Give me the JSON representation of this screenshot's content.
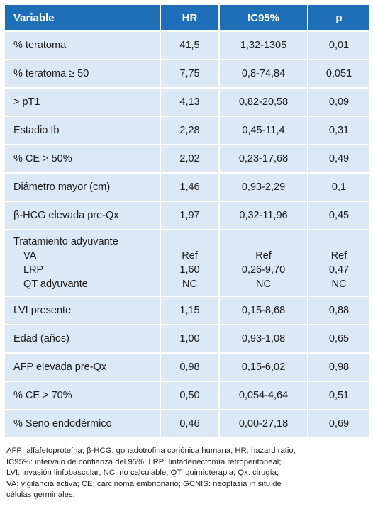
{
  "headers": [
    "Variable",
    "HR",
    "IC95%",
    "p"
  ],
  "rows_before": [
    {
      "variable": "% teratoma",
      "hr": "41,5",
      "ic": "1,32-1305",
      "p": "0,01"
    },
    {
      "variable": "% teratoma ≥ 50",
      "hr": "7,75",
      "ic": "0,8-74,84",
      "p": "0,051"
    },
    {
      "variable": "> pT1",
      "hr": "4,13",
      "ic": "0,82-20,58",
      "p": "0,09"
    },
    {
      "variable": "Estadio Ib",
      "hr": "2,28",
      "ic": "0,45-11,4",
      "p": "0,31"
    },
    {
      "variable": "% CE > 50%",
      "hr": "2,02",
      "ic": "0,23-17,68",
      "p": "0,49"
    },
    {
      "variable": "Diámetro mayor (cm)",
      "hr": "1,46",
      "ic": "0,93-2,29",
      "p": "0,1"
    },
    {
      "variable": "β-HCG elevada pre-Qx",
      "hr": "1,97",
      "ic": "0,32-11,96",
      "p": "0,45"
    }
  ],
  "treatment": {
    "title": "Tratamiento adyuvante",
    "items": [
      {
        "label": "VA",
        "hr": "Ref",
        "ic": "Ref",
        "p": "Ref"
      },
      {
        "label": "LRP",
        "hr": "1,60",
        "ic": "0,26-9,70",
        "p": "0,47"
      },
      {
        "label": "QT adyuvante",
        "hr": "NC",
        "ic": "NC",
        "p": "NC"
      }
    ]
  },
  "rows_after": [
    {
      "variable": "LVI presente",
      "hr": "1,15",
      "ic": "0,15-8,68",
      "p": "0,88"
    },
    {
      "variable": "Edad (años)",
      "hr": "1,00",
      "ic": "0,93-1,08",
      "p": "0,65"
    },
    {
      "variable": "AFP elevada pre-Qx",
      "hr": "0,98",
      "ic": "0,15-6,02",
      "p": "0,98"
    },
    {
      "variable": "% CE > 70%",
      "hr": "0,50",
      "ic": "0,054-4,64",
      "p": "0,51"
    },
    {
      "variable": "% Seno endodérmico",
      "hr": "0,46",
      "ic": "0,00-27,18",
      "p": "0,69"
    }
  ],
  "footnote": [
    "AFP: alfafetoproteína; β-HCG: gonadotrofina coriónica humana; HR: hazard ratio;",
    "IC95%: intervalo de confianza del 95%; LRP: linfadenectomía retroperitoneal;",
    "LVI: invasión linfobascular; NC: no calculable; QT: quimioterapia; Qx: cirugía;",
    "VA: vigilancia activa; CE: carcinoma embrionario; GCNIS: neoplasia in situ de",
    "células germinales."
  ]
}
